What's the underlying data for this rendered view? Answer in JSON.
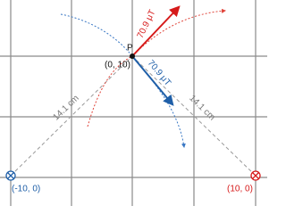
{
  "point": {
    "label": "P",
    "coords": "(0, 10)"
  },
  "fields": [
    {
      "label": "70.9 μT",
      "color": "red"
    },
    {
      "label": "70.9 μT",
      "color": "blue"
    }
  ],
  "distances": [
    "14.1 cm",
    "14.1 cm"
  ],
  "wires": [
    {
      "label": "(-10, 0)"
    },
    {
      "label": "(10, 0)"
    }
  ]
}
